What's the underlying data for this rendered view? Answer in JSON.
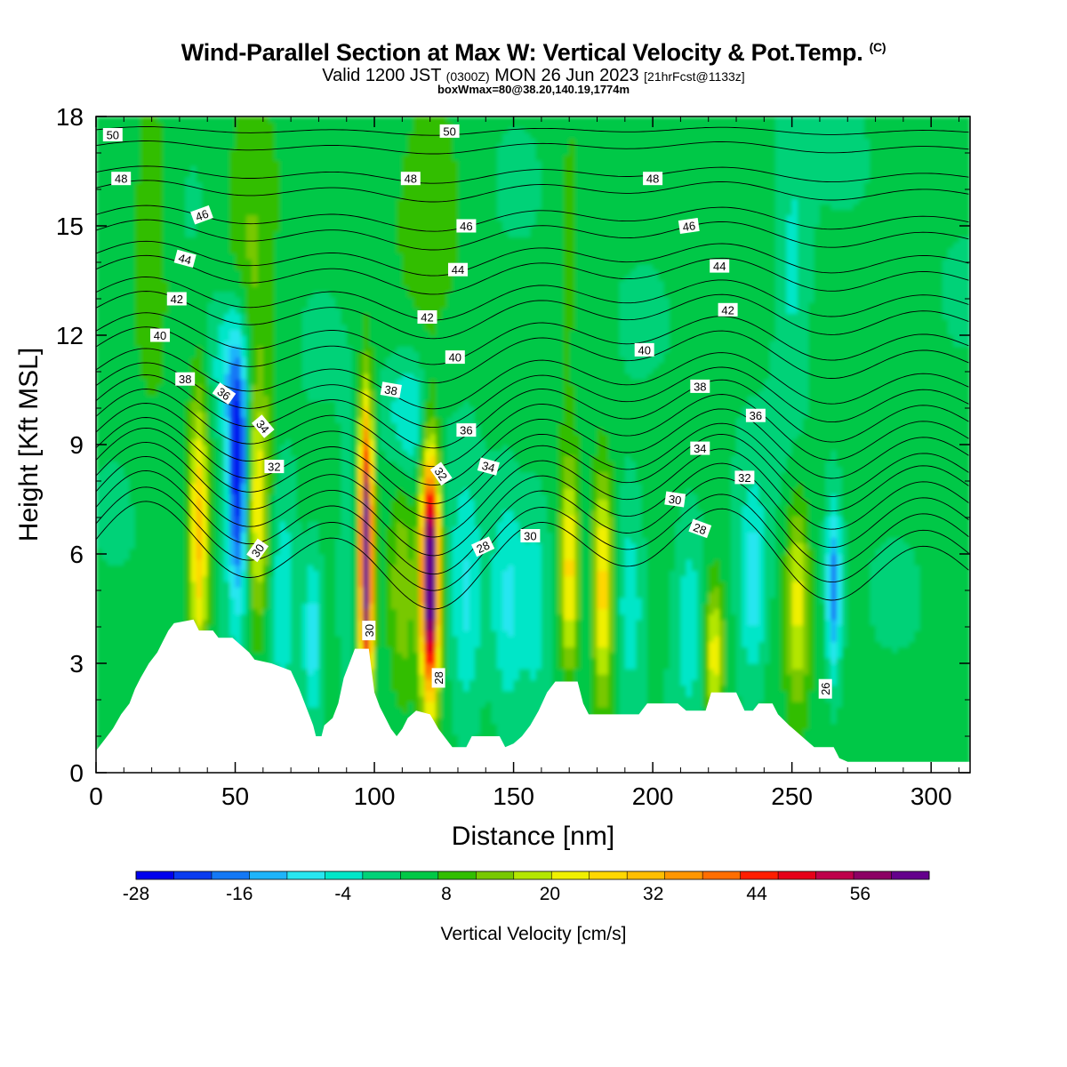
{
  "header": {
    "title": "Wind-Parallel Section at Max W: Vertical Velocity & Pot.Temp.",
    "copyright": "(C)",
    "valid_main": "Valid 1200 JST",
    "valid_utc": "(0300Z)",
    "valid_date": "MON 26 Jun 2023",
    "forecast": "[21hrFcst@1133z]",
    "box_info": "boxWmax=80@38.20,140.19,1774m"
  },
  "chart_data": {
    "type": "heatmap",
    "xlabel": "Distance [nm]",
    "ylabel": "Height [Kft MSL]",
    "xlim": [
      0,
      314
    ],
    "ylim": [
      0,
      18
    ],
    "x_ticks": [
      0,
      50,
      100,
      150,
      200,
      250,
      300
    ],
    "y_ticks": [
      0,
      3,
      6,
      9,
      12,
      15,
      18
    ],
    "colorbar": {
      "label": "Vertical Velocity [cm/s]",
      "min": -28,
      "max": 64,
      "step": 4,
      "tick_labels": [
        "-28",
        "-16",
        "-4",
        "8",
        "20",
        "32",
        "44",
        "56"
      ],
      "tick_values": [
        -28,
        -16,
        -4,
        8,
        20,
        32,
        44,
        56
      ],
      "colors": [
        "#0000ee",
        "#0a3cf0",
        "#1478f5",
        "#1eb4fa",
        "#28e6f0",
        "#00e6c8",
        "#00d278",
        "#00c846",
        "#32be00",
        "#78c800",
        "#b4e600",
        "#f0f000",
        "#ffd700",
        "#ffbe00",
        "#ff9600",
        "#ff6e00",
        "#ff1e00",
        "#e60019",
        "#be004b",
        "#8c0064",
        "#64008c"
      ]
    },
    "terrain_kft": [
      [
        0,
        0.6
      ],
      [
        3,
        0.9
      ],
      [
        6,
        1.2
      ],
      [
        9,
        1.6
      ],
      [
        12,
        1.9
      ],
      [
        14,
        2.3
      ],
      [
        16,
        2.6
      ],
      [
        19,
        3.0
      ],
      [
        22,
        3.3
      ],
      [
        24,
        3.6
      ],
      [
        26,
        3.9
      ],
      [
        28,
        4.1
      ],
      [
        35,
        4.2
      ],
      [
        37,
        3.9
      ],
      [
        42,
        3.9
      ],
      [
        44,
        3.7
      ],
      [
        49,
        3.7
      ],
      [
        52,
        3.5
      ],
      [
        55,
        3.3
      ],
      [
        57,
        3.1
      ],
      [
        63,
        3.0
      ],
      [
        70,
        2.8
      ],
      [
        73,
        2.3
      ],
      [
        75,
        1.9
      ],
      [
        77,
        1.5
      ],
      [
        78,
        1.3
      ],
      [
        79,
        1.0
      ],
      [
        81,
        1.0
      ],
      [
        82,
        1.3
      ],
      [
        85,
        1.5
      ],
      [
        87,
        1.9
      ],
      [
        89,
        2.6
      ],
      [
        91,
        3.0
      ],
      [
        93,
        3.4
      ],
      [
        98,
        3.4
      ],
      [
        100,
        2.2
      ],
      [
        102,
        1.8
      ],
      [
        104,
        1.5
      ],
      [
        106,
        1.2
      ],
      [
        108,
        1.0
      ],
      [
        110,
        1.2
      ],
      [
        112,
        1.5
      ],
      [
        115,
        1.7
      ],
      [
        120,
        1.6
      ],
      [
        123,
        1.2
      ],
      [
        126,
        0.9
      ],
      [
        128,
        0.7
      ],
      [
        133,
        0.7
      ],
      [
        135,
        1.0
      ],
      [
        145,
        1.0
      ],
      [
        147,
        0.7
      ],
      [
        150,
        0.8
      ],
      [
        153,
        1.0
      ],
      [
        156,
        1.3
      ],
      [
        159,
        1.7
      ],
      [
        162,
        2.2
      ],
      [
        165,
        2.5
      ],
      [
        173,
        2.5
      ],
      [
        175,
        1.9
      ],
      [
        177,
        1.6
      ],
      [
        195,
        1.6
      ],
      [
        198,
        1.9
      ],
      [
        209,
        1.9
      ],
      [
        212,
        1.7
      ],
      [
        219,
        1.7
      ],
      [
        221,
        2.2
      ],
      [
        230,
        2.2
      ],
      [
        233,
        1.7
      ],
      [
        236,
        1.7
      ],
      [
        238,
        1.9
      ],
      [
        243,
        1.9
      ],
      [
        245,
        1.6
      ],
      [
        249,
        1.3
      ],
      [
        252,
        1.1
      ],
      [
        255,
        0.9
      ],
      [
        258,
        0.7
      ],
      [
        265,
        0.7
      ],
      [
        267,
        0.4
      ],
      [
        270,
        0.3
      ],
      [
        314,
        0.3
      ]
    ],
    "velocity_features": [
      {
        "x": 37,
        "y": 6.5,
        "sx": 2.4,
        "sy": 2.6,
        "w": 24
      },
      {
        "x": 51,
        "y": 8.2,
        "sx": 2.6,
        "sy": 2.4,
        "w": -30
      },
      {
        "x": 58,
        "y": 7.2,
        "sx": 3.0,
        "sy": 2.4,
        "w": 18
      },
      {
        "x": 67,
        "y": 5.0,
        "sx": 3.5,
        "sy": 2.2,
        "w": -8
      },
      {
        "x": 78,
        "y": 3.8,
        "sx": 2.4,
        "sy": 1.6,
        "w": -12
      },
      {
        "x": 91,
        "y": 5.5,
        "sx": 3.0,
        "sy": 2.2,
        "w": -6
      },
      {
        "x": 97,
        "y": 6.0,
        "sx": 1.7,
        "sy": 2.7,
        "w": 60
      },
      {
        "x": 110,
        "y": 5.2,
        "sx": 3.5,
        "sy": 2.4,
        "w": 10
      },
      {
        "x": 120,
        "y": 5.4,
        "sx": 2.3,
        "sy": 2.3,
        "w": 64
      },
      {
        "x": 133,
        "y": 4.5,
        "sx": 4.0,
        "sy": 2.4,
        "w": -10
      },
      {
        "x": 148,
        "y": 4.6,
        "sx": 4.5,
        "sy": 2.2,
        "w": -10
      },
      {
        "x": 158,
        "y": 4.6,
        "sx": 3.0,
        "sy": 2.2,
        "w": -6
      },
      {
        "x": 170,
        "y": 5.5,
        "sx": 2.4,
        "sy": 2.0,
        "w": 22
      },
      {
        "x": 182,
        "y": 5.0,
        "sx": 2.6,
        "sy": 2.2,
        "w": 22
      },
      {
        "x": 192,
        "y": 4.8,
        "sx": 3.5,
        "sy": 2.0,
        "w": -8
      },
      {
        "x": 213,
        "y": 4.4,
        "sx": 4.0,
        "sy": 2.0,
        "w": -8
      },
      {
        "x": 222,
        "y": 3.2,
        "sx": 2.5,
        "sy": 1.4,
        "w": 18
      },
      {
        "x": 236,
        "y": 5.2,
        "sx": 3.5,
        "sy": 1.8,
        "w": -12
      },
      {
        "x": 252,
        "y": 4.8,
        "sx": 3.0,
        "sy": 2.0,
        "w": 16
      },
      {
        "x": 265,
        "y": 5.0,
        "sx": 1.8,
        "sy": 1.6,
        "w": -20
      },
      {
        "x": 20,
        "y": 14.5,
        "sx": 5.0,
        "sy": 3.5,
        "w": 6
      },
      {
        "x": 55,
        "y": 14.0,
        "sx": 7.0,
        "sy": 3.0,
        "w": 8
      },
      {
        "x": 48,
        "y": 11.0,
        "sx": 5.0,
        "sy": 1.5,
        "w": -12
      },
      {
        "x": 120,
        "y": 16.0,
        "sx": 8.0,
        "sy": 2.5,
        "w": 6
      },
      {
        "x": 112,
        "y": 9.8,
        "sx": 5.0,
        "sy": 1.2,
        "w": -10
      },
      {
        "x": 170,
        "y": 15.0,
        "sx": 4.0,
        "sy": 3.0,
        "w": 4
      },
      {
        "x": 250,
        "y": 14.0,
        "sx": 4.0,
        "sy": 3.0,
        "w": -6
      }
    ],
    "theta_contours": [
      {
        "value": 50,
        "base": 17.6,
        "amp": 0.2
      },
      {
        "value": 48,
        "base": 16.4,
        "amp": 0.4
      },
      {
        "value": 46,
        "base": 15.2,
        "amp": 0.6
      },
      {
        "value": 44,
        "base": 14.1,
        "amp": 0.8
      },
      {
        "value": 42,
        "base": 13.0,
        "amp": 1.0
      },
      {
        "value": 40,
        "base": 11.9,
        "amp": 1.2
      },
      {
        "value": 38,
        "base": 10.8,
        "amp": 1.4
      },
      {
        "value": 36,
        "base": 9.9,
        "amp": 1.7
      },
      {
        "value": 34,
        "base": 9.0,
        "amp": 1.9
      },
      {
        "value": 32,
        "base": 8.2,
        "amp": 2.1
      },
      {
        "value": 30,
        "base": 7.3,
        "amp": 2.3
      },
      {
        "value": 28,
        "base": 6.4,
        "amp": 2.4
      }
    ],
    "contour_labels": [
      {
        "text": "50",
        "x": 6,
        "y": 17.5,
        "angle": 0
      },
      {
        "text": "50",
        "x": 127,
        "y": 17.6,
        "angle": 0
      },
      {
        "text": "48",
        "x": 9,
        "y": 16.3,
        "angle": 0
      },
      {
        "text": "48",
        "x": 113,
        "y": 16.3,
        "angle": 0
      },
      {
        "text": "48",
        "x": 200,
        "y": 16.3,
        "angle": 0
      },
      {
        "text": "46",
        "x": 38,
        "y": 15.3,
        "angle": -20
      },
      {
        "text": "46",
        "x": 133,
        "y": 15.0,
        "angle": 0
      },
      {
        "text": "46",
        "x": 213,
        "y": 15.0,
        "angle": -8
      },
      {
        "text": "44",
        "x": 32,
        "y": 14.1,
        "angle": 15
      },
      {
        "text": "44",
        "x": 130,
        "y": 13.8,
        "angle": 0
      },
      {
        "text": "44",
        "x": 224,
        "y": 13.9,
        "angle": 0
      },
      {
        "text": "42",
        "x": 29,
        "y": 13.0,
        "angle": 0
      },
      {
        "text": "42",
        "x": 119,
        "y": 12.5,
        "angle": 0
      },
      {
        "text": "42",
        "x": 227,
        "y": 12.7,
        "angle": 0
      },
      {
        "text": "40",
        "x": 23,
        "y": 12.0,
        "angle": 0
      },
      {
        "text": "40",
        "x": 129,
        "y": 11.4,
        "angle": 0
      },
      {
        "text": "40",
        "x": 197,
        "y": 11.6,
        "angle": 0
      },
      {
        "text": "38",
        "x": 32,
        "y": 10.8,
        "angle": 0
      },
      {
        "text": "38",
        "x": 106,
        "y": 10.5,
        "angle": 10
      },
      {
        "text": "38",
        "x": 217,
        "y": 10.6,
        "angle": 0
      },
      {
        "text": "36",
        "x": 46,
        "y": 10.4,
        "angle": 35
      },
      {
        "text": "36",
        "x": 133,
        "y": 9.4,
        "angle": 0
      },
      {
        "text": "36",
        "x": 237,
        "y": 9.8,
        "angle": 0
      },
      {
        "text": "34",
        "x": 60,
        "y": 9.5,
        "angle": 50
      },
      {
        "text": "34",
        "x": 141,
        "y": 8.4,
        "angle": 15
      },
      {
        "text": "34",
        "x": 217,
        "y": 8.9,
        "angle": 0
      },
      {
        "text": "32",
        "x": 64,
        "y": 8.4,
        "angle": 0
      },
      {
        "text": "32",
        "x": 124,
        "y": 8.2,
        "angle": 55
      },
      {
        "text": "32",
        "x": 233,
        "y": 8.1,
        "angle": 0
      },
      {
        "text": "30",
        "x": 58,
        "y": 6.1,
        "angle": -55
      },
      {
        "text": "30",
        "x": 156,
        "y": 6.5,
        "angle": 0
      },
      {
        "text": "30",
        "x": 208,
        "y": 7.5,
        "angle": 8
      },
      {
        "text": "30",
        "x": 98,
        "y": 3.9,
        "angle": -90
      },
      {
        "text": "28",
        "x": 139,
        "y": 6.2,
        "angle": -25
      },
      {
        "text": "28",
        "x": 217,
        "y": 6.7,
        "angle": 20
      },
      {
        "text": "28",
        "x": 123,
        "y": 2.6,
        "angle": -90
      },
      {
        "text": "26",
        "x": 262,
        "y": 2.3,
        "angle": -90
      }
    ]
  }
}
